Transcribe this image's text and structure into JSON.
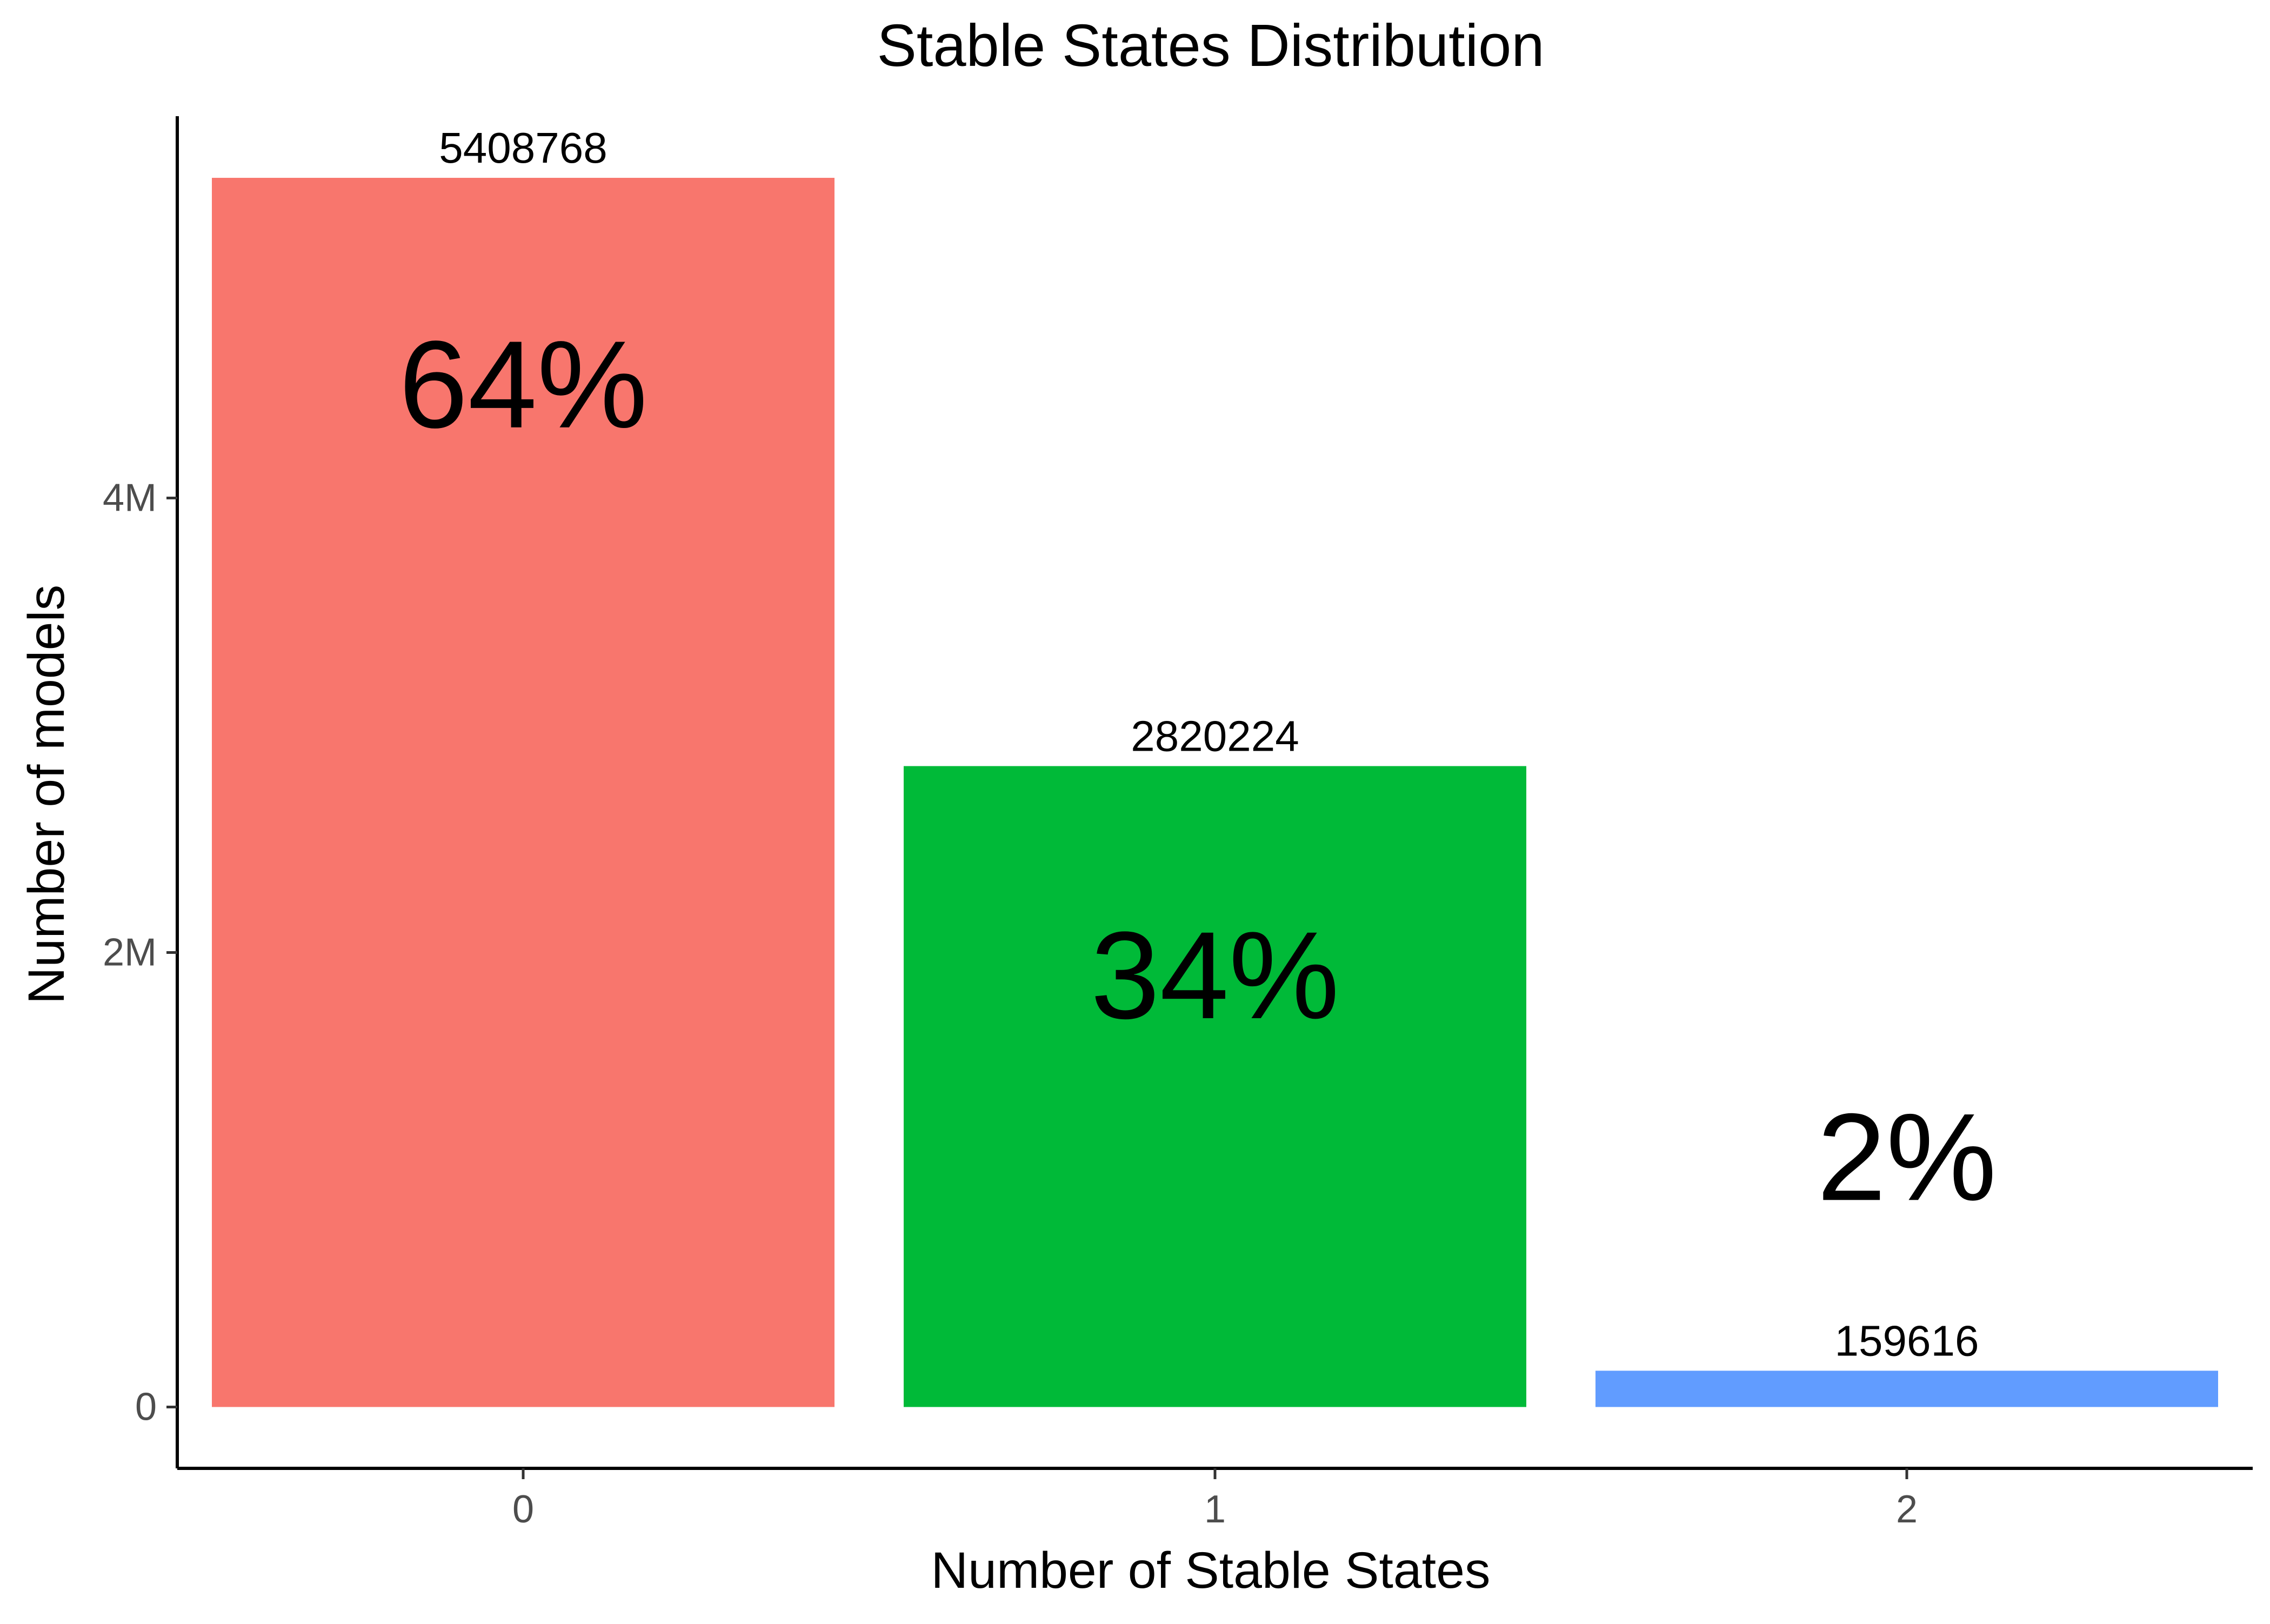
{
  "chart_data": {
    "type": "bar",
    "title": "Stable States Distribution",
    "xlabel": "Number of Stable States",
    "ylabel": "Number of models",
    "categories": [
      "0",
      "1",
      "2"
    ],
    "values": [
      5408768,
      2820224,
      159616
    ],
    "value_labels": [
      "5408768",
      "2820224",
      "159616"
    ],
    "percent_labels": [
      "64%",
      "34%",
      "2%"
    ],
    "percent_label_y": [
      4500000,
      1900000,
      1100000
    ],
    "colors": [
      "#F8766D",
      "#00BA38",
      "#619CFF"
    ],
    "ylim": [
      -270000,
      5680000
    ],
    "yticks": [
      0,
      2000000,
      4000000
    ],
    "ytick_labels": [
      "0",
      "2M",
      "4M"
    ],
    "grid": false,
    "legend": "none"
  }
}
